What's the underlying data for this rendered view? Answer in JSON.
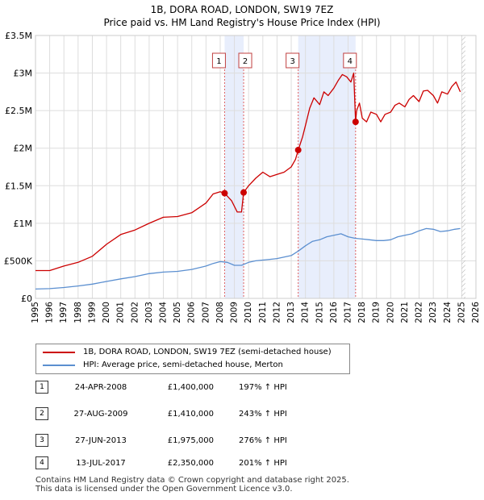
{
  "title_line1": "1B, DORA ROAD, LONDON, SW19 7EZ",
  "title_line2": "Price paid vs. HM Land Registry's House Price Index (HPI)",
  "colors": {
    "property": "#cc0000",
    "hpi": "#5b8fd0",
    "shade": "#e8eefc",
    "grid": "#dddddd",
    "vline": "#e06060"
  },
  "legend": {
    "property": "1B, DORA ROAD, LONDON, SW19 7EZ (semi-detached house)",
    "hpi": "HPI: Average price, semi-detached house, Merton"
  },
  "transactions": [
    {
      "num": "1",
      "date": "24-APR-2008",
      "price": "£1,400,000",
      "hpi": "197% ↑ HPI"
    },
    {
      "num": "2",
      "date": "27-AUG-2009",
      "price": "£1,410,000",
      "hpi": "243% ↑ HPI"
    },
    {
      "num": "3",
      "date": "27-JUN-2013",
      "price": "£1,975,000",
      "hpi": "276% ↑ HPI"
    },
    {
      "num": "4",
      "date": "13-JUL-2017",
      "price": "£2,350,000",
      "hpi": "201% ↑ HPI"
    }
  ],
  "footer_line1": "Contains HM Land Registry data © Crown copyright and database right 2025.",
  "footer_line2": "This data is licensed under the Open Government Licence v3.0.",
  "chart_data": {
    "type": "line",
    "xlim": [
      1995,
      2026
    ],
    "ylim": [
      0,
      3500000
    ],
    "y_ticks": [
      0,
      500000,
      1000000,
      1500000,
      2000000,
      2500000,
      3000000,
      3500000
    ],
    "y_tick_labels": [
      "£0",
      "£500K",
      "£1M",
      "£1.5M",
      "£2M",
      "£2.5M",
      "£3M",
      "£3.5M"
    ],
    "x_ticks": [
      1995,
      1996,
      1997,
      1998,
      1999,
      2000,
      2001,
      2002,
      2003,
      2004,
      2005,
      2006,
      2007,
      2008,
      2009,
      2010,
      2011,
      2012,
      2013,
      2014,
      2015,
      2016,
      2017,
      2018,
      2019,
      2020,
      2021,
      2022,
      2023,
      2024,
      2025,
      2026
    ],
    "x_tick_labels": [
      "1995",
      "1996",
      "1997",
      "1998",
      "1999",
      "2000",
      "2001",
      "2002",
      "2003",
      "2004",
      "2005",
      "2006",
      "2007",
      "2008",
      "2009",
      "2010",
      "2011",
      "2012",
      "2013",
      "2014",
      "2015",
      "2016",
      "2017",
      "2018",
      "2019",
      "2020",
      "2021",
      "2022",
      "2023",
      "2024",
      "2025",
      "2026"
    ],
    "shaded_ranges": [
      [
        2008.31,
        2009.65
      ],
      [
        2013.49,
        2017.53
      ]
    ],
    "future_start": 2025.0,
    "sale_markers": [
      {
        "label": "1",
        "x": 2008.31,
        "y": 1400000
      },
      {
        "label": "2",
        "x": 2009.65,
        "y": 1410000
      },
      {
        "label": "3",
        "x": 2013.49,
        "y": 1975000
      },
      {
        "label": "4",
        "x": 2017.53,
        "y": 2350000
      }
    ],
    "series": [
      {
        "name": "1B, DORA ROAD, LONDON, SW19 7EZ (semi-detached house)",
        "x": [
          1995.0,
          1996.0,
          1997.0,
          1998.0,
          1999.0,
          2000.0,
          2001.0,
          2002.0,
          2003.0,
          2004.0,
          2005.0,
          2006.0,
          2007.0,
          2007.5,
          2008.0,
          2008.31,
          2008.8,
          2009.2,
          2009.5,
          2009.65,
          2010.0,
          2010.5,
          2011.0,
          2011.5,
          2012.0,
          2012.5,
          2013.0,
          2013.3,
          2013.49,
          2013.8,
          2014.0,
          2014.3,
          2014.6,
          2015.0,
          2015.3,
          2015.6,
          2016.0,
          2016.3,
          2016.6,
          2016.9,
          2017.2,
          2017.4,
          2017.53,
          2017.6,
          2017.8,
          2018.0,
          2018.3,
          2018.6,
          2019.0,
          2019.3,
          2019.6,
          2020.0,
          2020.3,
          2020.6,
          2021.0,
          2021.3,
          2021.6,
          2022.0,
          2022.3,
          2022.6,
          2023.0,
          2023.3,
          2023.6,
          2024.0,
          2024.3,
          2024.6,
          2024.9
        ],
        "values": [
          370000,
          370000,
          430000,
          480000,
          560000,
          720000,
          850000,
          910000,
          1000000,
          1080000,
          1090000,
          1140000,
          1270000,
          1390000,
          1420000,
          1400000,
          1300000,
          1150000,
          1150000,
          1410000,
          1500000,
          1600000,
          1680000,
          1620000,
          1650000,
          1680000,
          1750000,
          1850000,
          1975000,
          2150000,
          2300000,
          2530000,
          2670000,
          2580000,
          2750000,
          2700000,
          2800000,
          2900000,
          2980000,
          2950000,
          2880000,
          3000000,
          2350000,
          2500000,
          2600000,
          2400000,
          2350000,
          2480000,
          2450000,
          2350000,
          2450000,
          2480000,
          2570000,
          2600000,
          2550000,
          2650000,
          2700000,
          2620000,
          2760000,
          2770000,
          2700000,
          2600000,
          2750000,
          2720000,
          2820000,
          2880000,
          2750000
        ]
      },
      {
        "name": "HPI: Average price, semi-detached house, Merton",
        "x": [
          1995.0,
          1996.0,
          1997.0,
          1998.0,
          1999.0,
          2000.0,
          2001.0,
          2002.0,
          2003.0,
          2004.0,
          2005.0,
          2006.0,
          2007.0,
          2007.5,
          2008.0,
          2008.5,
          2009.0,
          2009.5,
          2010.0,
          2010.5,
          2011.0,
          2011.5,
          2012.0,
          2012.5,
          2013.0,
          2013.5,
          2014.0,
          2014.5,
          2015.0,
          2015.5,
          2016.0,
          2016.5,
          2017.0,
          2017.5,
          2018.0,
          2018.5,
          2019.0,
          2019.5,
          2020.0,
          2020.5,
          2021.0,
          2021.5,
          2022.0,
          2022.5,
          2023.0,
          2023.5,
          2024.0,
          2024.5,
          2024.9
        ],
        "values": [
          125000,
          130000,
          145000,
          165000,
          190000,
          225000,
          260000,
          290000,
          330000,
          350000,
          360000,
          385000,
          430000,
          465000,
          490000,
          480000,
          440000,
          440000,
          480000,
          500000,
          510000,
          520000,
          530000,
          550000,
          570000,
          630000,
          700000,
          760000,
          780000,
          820000,
          840000,
          860000,
          820000,
          800000,
          790000,
          780000,
          770000,
          770000,
          780000,
          820000,
          840000,
          860000,
          900000,
          930000,
          920000,
          890000,
          900000,
          920000,
          930000
        ]
      }
    ]
  }
}
